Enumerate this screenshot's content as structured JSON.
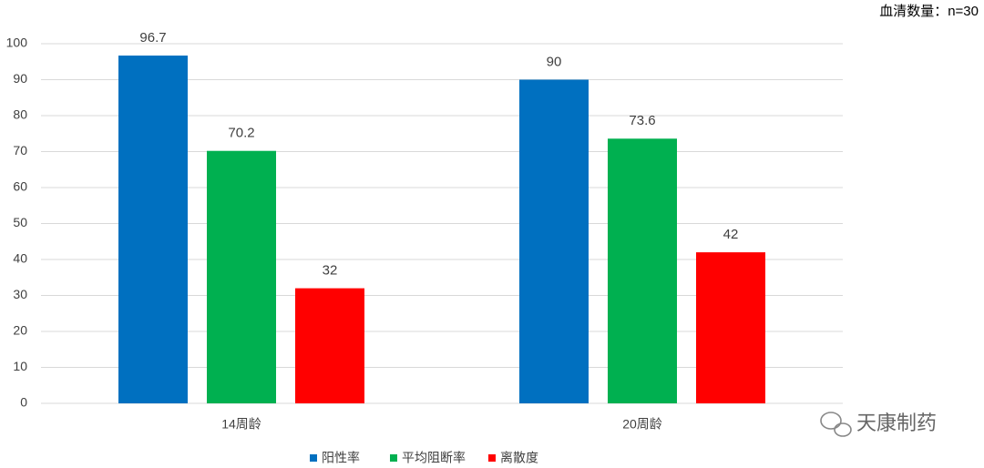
{
  "chart_data": {
    "type": "bar",
    "annotation": "血清数量：n=30",
    "watermark": "天康制药",
    "categories": [
      "14周龄",
      "20周龄"
    ],
    "series": [
      {
        "name": "阳性率",
        "color": "#0070c0",
        "values": [
          96.7,
          90
        ]
      },
      {
        "name": "平均阻断率",
        "color": "#00b050",
        "values": [
          70.2,
          73.6
        ]
      },
      {
        "name": "离散度",
        "color": "#ff0000",
        "values": [
          32,
          42
        ]
      }
    ],
    "ylim": [
      0,
      100
    ],
    "yticks": [
      0,
      10,
      20,
      30,
      40,
      50,
      60,
      70,
      80,
      90,
      100
    ],
    "grid": true,
    "legend": "bottom",
    "value_labels_shown": true
  }
}
